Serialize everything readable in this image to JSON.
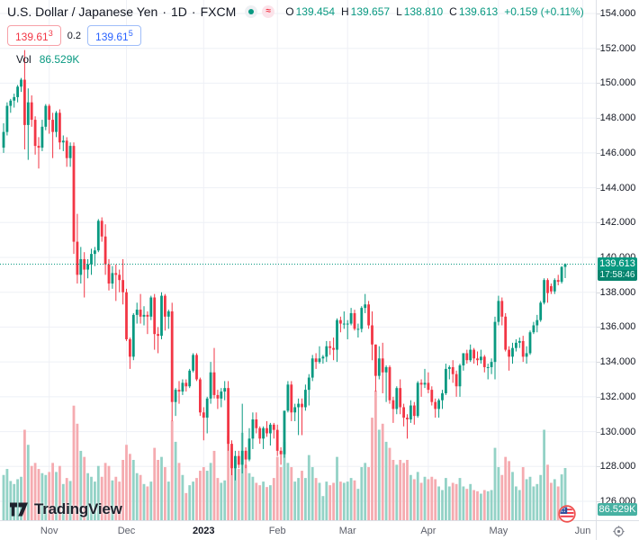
{
  "header": {
    "symbol_name": "U.S. Dollar / Japanese Yen",
    "separator": "·",
    "interval": "1D",
    "exchange": "FXCM",
    "status_approx": "≈",
    "ohlc": {
      "o_label": "O",
      "o": "139.454",
      "h_label": "H",
      "h": "139.657",
      "l_label": "L",
      "l": "138.810",
      "c_label": "C",
      "c": "139.613",
      "change": "+0.159 (+0.11%)"
    },
    "bid": {
      "value": "139.61",
      "sup": "3"
    },
    "spread": "0.2",
    "ask": {
      "value": "139.61",
      "sup": "5"
    },
    "vol_label": "Vol",
    "vol_value": "86.529K"
  },
  "price_axis": {
    "ticks": [
      "154.000",
      "152.000",
      "150.000",
      "148.000",
      "146.000",
      "144.000",
      "142.000",
      "140.000",
      "138.000",
      "136.000",
      "134.000",
      "132.000",
      "130.000",
      "128.000",
      "126.000"
    ],
    "last_price_label": "139.613",
    "countdown": "17:58:46",
    "volume_label": "86.529K"
  },
  "time_axis": {
    "ticks": [
      {
        "label": "Nov",
        "index": 13
      },
      {
        "label": "Dec",
        "index": 35
      },
      {
        "label": "2023",
        "index": 57,
        "strong": true
      },
      {
        "label": "Feb",
        "index": 78
      },
      {
        "label": "Mar",
        "index": 98
      },
      {
        "label": "Apr",
        "index": 121
      },
      {
        "label": "May",
        "index": 141
      },
      {
        "label": "Jun",
        "index": 165
      }
    ]
  },
  "logo": {
    "text": "TradingView"
  },
  "colors": {
    "up": "#089981",
    "down": "#f23645",
    "vol_up": "#93d2c6",
    "vol_down": "#f5abb0",
    "grid": "#eef0f6",
    "accent": "#089981",
    "bid": "#f23645",
    "ask": "#2962ff"
  },
  "chart_data": {
    "type": "candlestick",
    "symbol": "USD/JPY",
    "timeframe": "1D",
    "exchange": "FXCM",
    "current_price": 139.613,
    "y_axis": {
      "min": 126,
      "max": 154,
      "step": 2
    },
    "volume_unit": "K",
    "legend_position": "top-left",
    "grid": true,
    "candles_format": [
      "open",
      "high",
      "low",
      "close",
      "volume_k"
    ],
    "candles": [
      [
        146.3,
        147.7,
        146.0,
        147.2,
        75
      ],
      [
        147.2,
        148.9,
        147.0,
        148.7,
        85
      ],
      [
        148.7,
        149.1,
        148.3,
        149.0,
        65
      ],
      [
        149.0,
        149.4,
        148.6,
        149.2,
        60
      ],
      [
        149.2,
        149.9,
        148.9,
        149.8,
        68
      ],
      [
        149.8,
        150.3,
        149.5,
        150.2,
        72
      ],
      [
        150.2,
        151.9,
        146.2,
        147.6,
        150
      ],
      [
        147.6,
        149.7,
        145.6,
        148.9,
        125
      ],
      [
        148.9,
        149.3,
        147.5,
        147.9,
        90
      ],
      [
        147.9,
        148.1,
        145.9,
        146.4,
        95
      ],
      [
        146.4,
        146.9,
        145.1,
        146.3,
        85
      ],
      [
        146.3,
        147.9,
        146.1,
        147.5,
        78
      ],
      [
        147.5,
        148.8,
        147.3,
        148.7,
        75
      ],
      [
        148.7,
        148.8,
        147.1,
        147.9,
        80
      ],
      [
        147.9,
        148.3,
        145.7,
        147.2,
        95
      ],
      [
        147.2,
        148.4,
        146.9,
        148.3,
        80
      ],
      [
        148.3,
        148.5,
        146.2,
        146.6,
        90
      ],
      [
        146.6,
        147.0,
        146.1,
        146.7,
        60
      ],
      [
        146.7,
        146.9,
        145.2,
        145.7,
        70
      ],
      [
        145.7,
        146.6,
        145.2,
        146.4,
        65
      ],
      [
        146.4,
        146.6,
        140.2,
        140.9,
        190
      ],
      [
        140.9,
        142.5,
        138.5,
        139.0,
        160
      ],
      [
        139.0,
        140.6,
        138.5,
        139.9,
        115
      ],
      [
        139.9,
        140.3,
        137.7,
        139.3,
        105
      ],
      [
        139.3,
        139.9,
        138.8,
        139.6,
        78
      ],
      [
        139.6,
        140.5,
        139.0,
        140.2,
        72
      ],
      [
        140.2,
        140.6,
        139.5,
        140.4,
        64
      ],
      [
        140.4,
        142.2,
        140.3,
        142.1,
        90
      ],
      [
        142.1,
        142.3,
        140.9,
        141.2,
        72
      ],
      [
        141.2,
        141.9,
        139.0,
        139.6,
        95
      ],
      [
        139.6,
        139.9,
        138.1,
        138.5,
        90
      ],
      [
        138.5,
        139.5,
        138.2,
        139.1,
        66
      ],
      [
        139.1,
        139.6,
        137.5,
        139.0,
        72
      ],
      [
        139.0,
        139.3,
        138.0,
        138.7,
        64
      ],
      [
        138.7,
        139.9,
        137.3,
        138.0,
        100
      ],
      [
        138.0,
        138.2,
        135.2,
        135.3,
        125
      ],
      [
        135.3,
        135.4,
        133.6,
        134.3,
        110
      ],
      [
        134.3,
        136.8,
        134.1,
        136.7,
        100
      ],
      [
        136.7,
        137.4,
        136.2,
        137.0,
        78
      ],
      [
        137.0,
        137.9,
        136.2,
        136.6,
        75
      ],
      [
        136.6,
        137.2,
        136.1,
        136.7,
        60
      ],
      [
        136.7,
        136.9,
        135.6,
        136.6,
        56
      ],
      [
        136.6,
        137.8,
        136.4,
        137.7,
        64
      ],
      [
        137.7,
        137.9,
        134.7,
        135.6,
        120
      ],
      [
        135.6,
        136.0,
        134.5,
        135.5,
        100
      ],
      [
        135.5,
        138.0,
        135.3,
        137.8,
        105
      ],
      [
        137.8,
        137.9,
        135.8,
        136.6,
        88
      ],
      [
        136.6,
        137.0,
        135.9,
        136.9,
        64
      ],
      [
        136.9,
        137.4,
        130.6,
        131.7,
        165
      ],
      [
        131.7,
        132.5,
        130.9,
        132.4,
        130
      ],
      [
        132.4,
        132.9,
        131.6,
        132.3,
        95
      ],
      [
        132.3,
        133.0,
        132.1,
        132.8,
        75
      ],
      [
        132.8,
        133.0,
        132.3,
        132.6,
        45
      ],
      [
        132.6,
        133.6,
        132.5,
        133.5,
        58
      ],
      [
        133.5,
        134.5,
        133.4,
        134.4,
        64
      ],
      [
        134.4,
        134.5,
        132.9,
        133.0,
        70
      ],
      [
        133.0,
        133.1,
        130.9,
        131.1,
        82
      ],
      [
        131.1,
        131.4,
        129.5,
        130.8,
        88
      ],
      [
        130.8,
        132.0,
        129.9,
        131.9,
        82
      ],
      [
        131.9,
        134.0,
        131.6,
        133.4,
        95
      ],
      [
        133.4,
        134.8,
        131.9,
        132.1,
        115
      ],
      [
        132.1,
        132.4,
        131.3,
        131.9,
        70
      ],
      [
        131.9,
        132.5,
        131.4,
        132.3,
        62
      ],
      [
        132.3,
        132.9,
        131.8,
        132.5,
        66
      ],
      [
        132.5,
        132.9,
        128.9,
        129.3,
        140
      ],
      [
        129.3,
        129.5,
        127.5,
        127.9,
        120
      ],
      [
        127.9,
        128.9,
        127.2,
        128.6,
        100
      ],
      [
        128.6,
        128.9,
        127.9,
        128.1,
        85
      ],
      [
        128.1,
        131.6,
        127.6,
        128.9,
        145
      ],
      [
        128.9,
        129.1,
        127.9,
        128.4,
        92
      ],
      [
        128.4,
        130.2,
        128.3,
        129.6,
        78
      ],
      [
        129.6,
        131.1,
        129.0,
        130.7,
        72
      ],
      [
        130.7,
        131.1,
        129.9,
        130.2,
        62
      ],
      [
        130.2,
        130.3,
        129.3,
        129.6,
        58
      ],
      [
        129.6,
        130.3,
        129.0,
        130.2,
        64
      ],
      [
        130.2,
        130.6,
        129.7,
        129.9,
        55
      ],
      [
        129.9,
        130.5,
        129.2,
        130.4,
        58
      ],
      [
        130.4,
        130.5,
        129.6,
        130.1,
        70
      ],
      [
        130.1,
        130.4,
        128.6,
        128.9,
        105
      ],
      [
        128.9,
        129.1,
        128.1,
        128.7,
        88
      ],
      [
        128.7,
        131.2,
        128.5,
        131.2,
        130
      ],
      [
        131.2,
        132.9,
        131.1,
        132.7,
        95
      ],
      [
        132.7,
        132.9,
        130.6,
        131.1,
        88
      ],
      [
        131.1,
        131.6,
        130.6,
        131.4,
        64
      ],
      [
        131.4,
        131.9,
        129.8,
        131.6,
        70
      ],
      [
        131.6,
        131.9,
        129.8,
        131.4,
        82
      ],
      [
        131.4,
        132.7,
        131.2,
        132.4,
        70
      ],
      [
        132.4,
        133.3,
        131.5,
        133.1,
        108
      ],
      [
        133.1,
        134.4,
        132.9,
        134.2,
        88
      ],
      [
        134.2,
        134.5,
        133.6,
        134.0,
        70
      ],
      [
        134.0,
        134.9,
        133.9,
        134.2,
        62
      ],
      [
        134.2,
        134.4,
        133.9,
        134.3,
        40
      ],
      [
        134.3,
        135.2,
        134.0,
        134.9,
        64
      ],
      [
        134.9,
        135.2,
        134.4,
        134.8,
        58
      ],
      [
        134.8,
        135.4,
        134.1,
        134.7,
        62
      ],
      [
        134.7,
        136.5,
        134.0,
        136.4,
        105
      ],
      [
        136.4,
        136.6,
        135.7,
        136.2,
        64
      ],
      [
        136.2,
        136.9,
        135.9,
        136.2,
        62
      ],
      [
        136.2,
        136.4,
        135.3,
        136.2,
        64
      ],
      [
        136.2,
        137.1,
        136.1,
        136.8,
        70
      ],
      [
        136.8,
        137.0,
        135.8,
        135.9,
        66
      ],
      [
        135.9,
        136.2,
        135.4,
        135.9,
        52
      ],
      [
        135.9,
        137.2,
        135.7,
        137.1,
        88
      ],
      [
        137.1,
        137.9,
        136.8,
        137.3,
        95
      ],
      [
        137.3,
        137.5,
        135.9,
        136.1,
        88
      ],
      [
        136.1,
        136.9,
        134.1,
        135.0,
        170
      ],
      [
        135.0,
        135.0,
        132.3,
        133.2,
        215
      ],
      [
        133.2,
        134.9,
        133.0,
        134.2,
        150
      ],
      [
        134.2,
        135.1,
        132.2,
        133.4,
        160
      ],
      [
        133.4,
        133.8,
        131.7,
        133.7,
        130
      ],
      [
        133.7,
        133.8,
        131.6,
        131.8,
        120
      ],
      [
        131.8,
        132.0,
        130.5,
        131.3,
        100
      ],
      [
        131.3,
        132.6,
        131.0,
        132.5,
        92
      ],
      [
        132.5,
        133.0,
        131.0,
        131.4,
        100
      ],
      [
        131.4,
        131.6,
        130.3,
        130.8,
        95
      ],
      [
        130.8,
        131.0,
        129.6,
        130.7,
        100
      ],
      [
        130.7,
        131.8,
        130.5,
        131.5,
        75
      ],
      [
        131.5,
        131.7,
        130.4,
        130.9,
        68
      ],
      [
        130.9,
        132.9,
        130.8,
        132.8,
        80
      ],
      [
        132.8,
        133.0,
        132.0,
        132.7,
        62
      ],
      [
        132.7,
        133.6,
        132.5,
        132.8,
        72
      ],
      [
        132.8,
        133.4,
        132.2,
        132.4,
        68
      ],
      [
        132.4,
        132.6,
        131.5,
        131.7,
        72
      ],
      [
        131.7,
        131.9,
        130.8,
        131.3,
        68
      ],
      [
        131.3,
        131.9,
        130.8,
        131.8,
        56
      ],
      [
        131.8,
        132.4,
        131.3,
        132.2,
        50
      ],
      [
        132.2,
        133.9,
        132.1,
        133.6,
        70
      ],
      [
        133.6,
        133.8,
        133.0,
        133.7,
        56
      ],
      [
        133.7,
        134.1,
        132.8,
        133.3,
        62
      ],
      [
        133.3,
        133.5,
        132.0,
        132.6,
        60
      ],
      [
        132.6,
        133.9,
        132.0,
        133.8,
        70
      ],
      [
        133.8,
        134.5,
        133.5,
        134.5,
        56
      ],
      [
        134.5,
        134.7,
        133.9,
        134.1,
        52
      ],
      [
        134.1,
        135.0,
        134.0,
        134.7,
        60
      ],
      [
        134.7,
        134.8,
        133.9,
        134.2,
        50
      ],
      [
        134.2,
        134.6,
        133.8,
        134.1,
        48
      ],
      [
        134.1,
        134.7,
        133.9,
        134.3,
        44
      ],
      [
        134.3,
        134.4,
        133.4,
        133.7,
        50
      ],
      [
        133.7,
        133.9,
        133.0,
        133.7,
        48
      ],
      [
        133.7,
        134.2,
        133.3,
        134.0,
        50
      ],
      [
        134.0,
        136.6,
        133.0,
        136.3,
        120
      ],
      [
        136.3,
        137.8,
        136.1,
        137.5,
        88
      ],
      [
        137.5,
        137.7,
        136.1,
        136.6,
        75
      ],
      [
        136.6,
        136.8,
        134.6,
        134.7,
        105
      ],
      [
        134.7,
        134.9,
        133.5,
        134.3,
        98
      ],
      [
        134.3,
        135.1,
        133.9,
        134.8,
        80
      ],
      [
        134.8,
        135.3,
        134.6,
        135.1,
        56
      ],
      [
        135.1,
        135.4,
        134.8,
        135.2,
        50
      ],
      [
        135.2,
        135.5,
        134.0,
        134.3,
        88
      ],
      [
        134.3,
        134.9,
        133.9,
        134.5,
        68
      ],
      [
        134.5,
        135.8,
        134.4,
        135.7,
        72
      ],
      [
        135.7,
        136.3,
        135.6,
        136.1,
        56
      ],
      [
        136.1,
        136.7,
        135.7,
        136.4,
        60
      ],
      [
        136.4,
        137.5,
        136.3,
        137.4,
        75
      ],
      [
        137.4,
        138.8,
        137.3,
        138.7,
        150
      ],
      [
        138.7,
        138.8,
        137.4,
        137.95,
        92
      ],
      [
        138.35,
        138.5,
        137.9,
        138.05,
        62
      ],
      [
        138.05,
        138.8,
        137.9,
        138.7,
        68
      ],
      [
        138.7,
        139.0,
        138.4,
        138.6,
        56
      ],
      [
        138.6,
        139.5,
        138.5,
        139.45,
        76
      ],
      [
        139.454,
        139.657,
        138.81,
        139.613,
        86.529
      ]
    ]
  }
}
